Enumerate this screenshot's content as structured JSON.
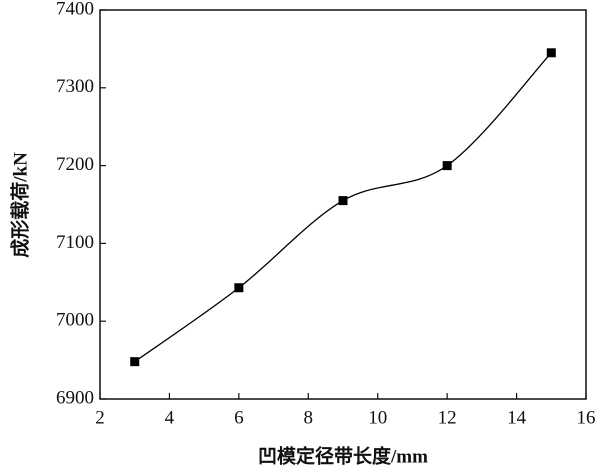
{
  "chart_data": {
    "type": "line",
    "x_label": "凹模定径带长度/mm",
    "y_label": "成形载荷/kN",
    "x": [
      3,
      6,
      9,
      12,
      15
    ],
    "series": [
      {
        "color": "#000000",
        "values": [
          6948,
          7043,
          7155,
          7200,
          7345
        ]
      }
    ],
    "xlim": [
      2,
      16
    ],
    "xticks": [
      2,
      4,
      6,
      8,
      10,
      12,
      14,
      16
    ],
    "ylim": [
      6900,
      7400
    ],
    "yticks": [
      6900,
      7000,
      7100,
      7200,
      7300,
      7400
    ],
    "smooth": true,
    "markers": "square"
  }
}
